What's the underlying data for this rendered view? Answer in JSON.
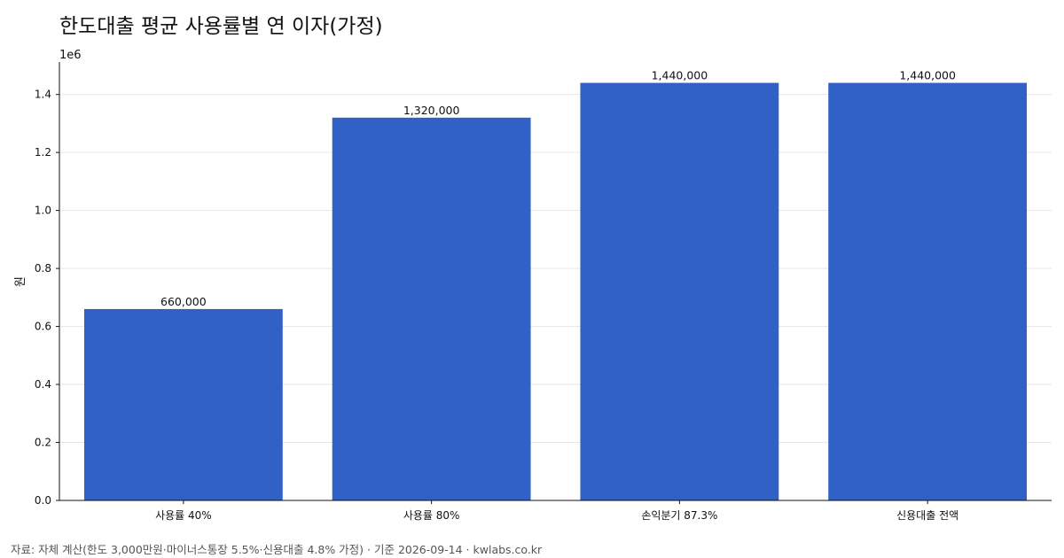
{
  "chart_data": {
    "type": "bar",
    "title": "한도대출 평균 사용률별 연 이자(가정)",
    "ylabel": "원",
    "xlabel": "",
    "y_exponent_label": "1e6",
    "categories": [
      "사용률 40%",
      "사용률 80%",
      "손익분기 87.3%",
      "신용대출 전액"
    ],
    "values": [
      660000,
      1320000,
      1440000,
      1440000
    ],
    "value_labels": [
      "660,000",
      "1,320,000",
      "1,440,000",
      "1,440,000"
    ],
    "y_ticks": [
      0,
      0.2,
      0.4,
      0.6,
      0.8,
      1.0,
      1.2,
      1.4
    ],
    "y_tick_labels": [
      "0.0",
      "0.2",
      "0.4",
      "0.6",
      "0.8",
      "1.0",
      "1.2",
      "1.4"
    ],
    "ylim": [
      0,
      1512000
    ],
    "grid": true,
    "bar_color": "#3160c6"
  },
  "footer": "자료: 자체 계산(한도 3,000만원·마이너스통장 5.5%·신용대출 4.8% 가정) · 기준 2026-09-14 · kwlabs.co.kr"
}
